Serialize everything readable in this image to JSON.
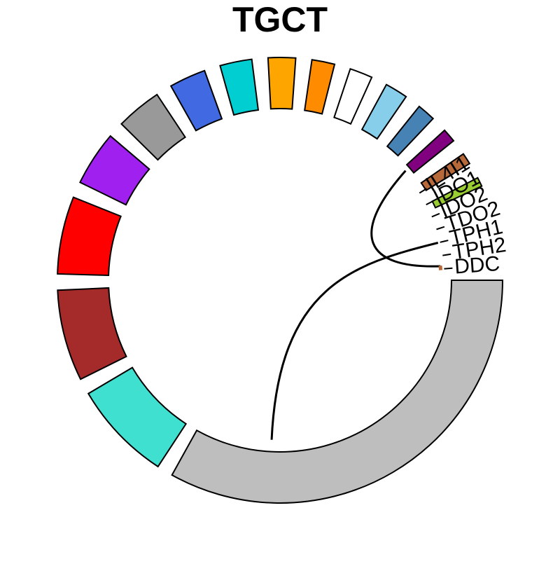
{
  "chart_data": {
    "type": "chord",
    "title": "TGCT",
    "sectors": [
      {
        "label": "DDC",
        "color": "#BEBEBE",
        "value": 100
      },
      {
        "label": "",
        "color": "#40E0D0",
        "value": 22
      },
      {
        "label": "",
        "color": "#A52A2A",
        "value": 20
      },
      {
        "label": "",
        "color": "#FF0000",
        "value": 17
      },
      {
        "label": "",
        "color": "#A020F0",
        "value": 12
      },
      {
        "label": "",
        "color": "#999999",
        "value": 10
      },
      {
        "label": "",
        "color": "#4169E1",
        "value": 8
      },
      {
        "label": "",
        "color": "#00CED1",
        "value": 7
      },
      {
        "label": "",
        "color": "#FFA500",
        "value": 6
      },
      {
        "label": "",
        "color": "#FF8C00",
        "value": 5
      },
      {
        "label": "",
        "color": "#FFFFFF",
        "value": 5
      },
      {
        "label": "",
        "color": "#87CEEB",
        "value": 5
      },
      {
        "label": "",
        "color": "#4682B4",
        "value": 4
      },
      {
        "label": "",
        "color": "#800080",
        "value": 3
      },
      {
        "label": "",
        "color": "#B7693A",
        "value": 2.5
      },
      {
        "label": "",
        "color": "#9ACD32",
        "value": 2
      }
    ],
    "gene_labels": [
      "IL4I1",
      "IDO1",
      "IDO2",
      "TDO2",
      "TPH1",
      "TPH2",
      "DDC"
    ],
    "links": [
      {
        "from": "sector 14",
        "to": "DDC"
      },
      {
        "from": "TPH1",
        "to": "DDC"
      }
    ]
  }
}
